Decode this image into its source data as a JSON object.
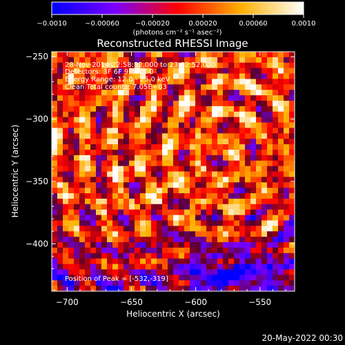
{
  "chart_data": {
    "type": "heatmap",
    "title": "Reconstructed RHESSI Image",
    "xlabel": "Heliocentric X (arcsec)",
    "ylabel": "Heliocentric Y (arcsec)",
    "xlim": [
      -712,
      -523
    ],
    "ylim": [
      -438,
      -246
    ],
    "x_ticks": [
      -700,
      -650,
      -600,
      -550
    ],
    "y_ticks": [
      -250,
      -300,
      -350,
      -400
    ],
    "x_tick_labels": [
      "−700",
      "−650",
      "−600",
      "−550"
    ],
    "y_tick_labels": [
      "−250",
      "−300",
      "−350",
      "−400"
    ],
    "colorbar": {
      "range": [
        -0.001,
        0.001
      ],
      "ticks": [
        -0.001,
        -0.0006,
        -0.0002,
        0.0002,
        0.0006,
        0.001
      ],
      "tick_labels": [
        "−0.0010",
        "−0.00060",
        "−0.00020",
        "0.00020",
        "0.00060",
        "0.0010"
      ],
      "unit_label": "(photons cm⁻² s⁻¹ asec⁻²)",
      "colors": [
        "#0000ff",
        "#7a00ff",
        "#ff0000",
        "#ffb000",
        "#ffffff"
      ]
    },
    "annotations": [
      "28-Nov-2014 22:58:52.000 to 23:02:52.000",
      "Detectors: 3F 6F 9F, Att 0",
      "Energy Range: 12.0 - 25.0 keV",
      "Clean    Total counts: 7.05E+03"
    ],
    "peak_label": "Position of Peak = [-532,-319]",
    "peak_position": [
      -532,
      -319
    ]
  },
  "footer": {
    "timestamp": "20-May-2022 00:30"
  }
}
